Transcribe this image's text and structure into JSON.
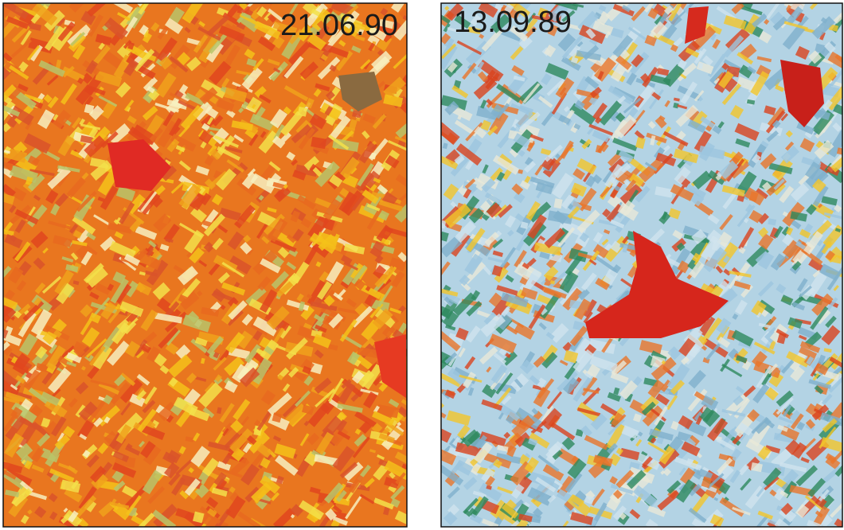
{
  "panels": [
    {
      "label": "21.06.90"
    },
    {
      "label": "13.09.89"
    }
  ]
}
